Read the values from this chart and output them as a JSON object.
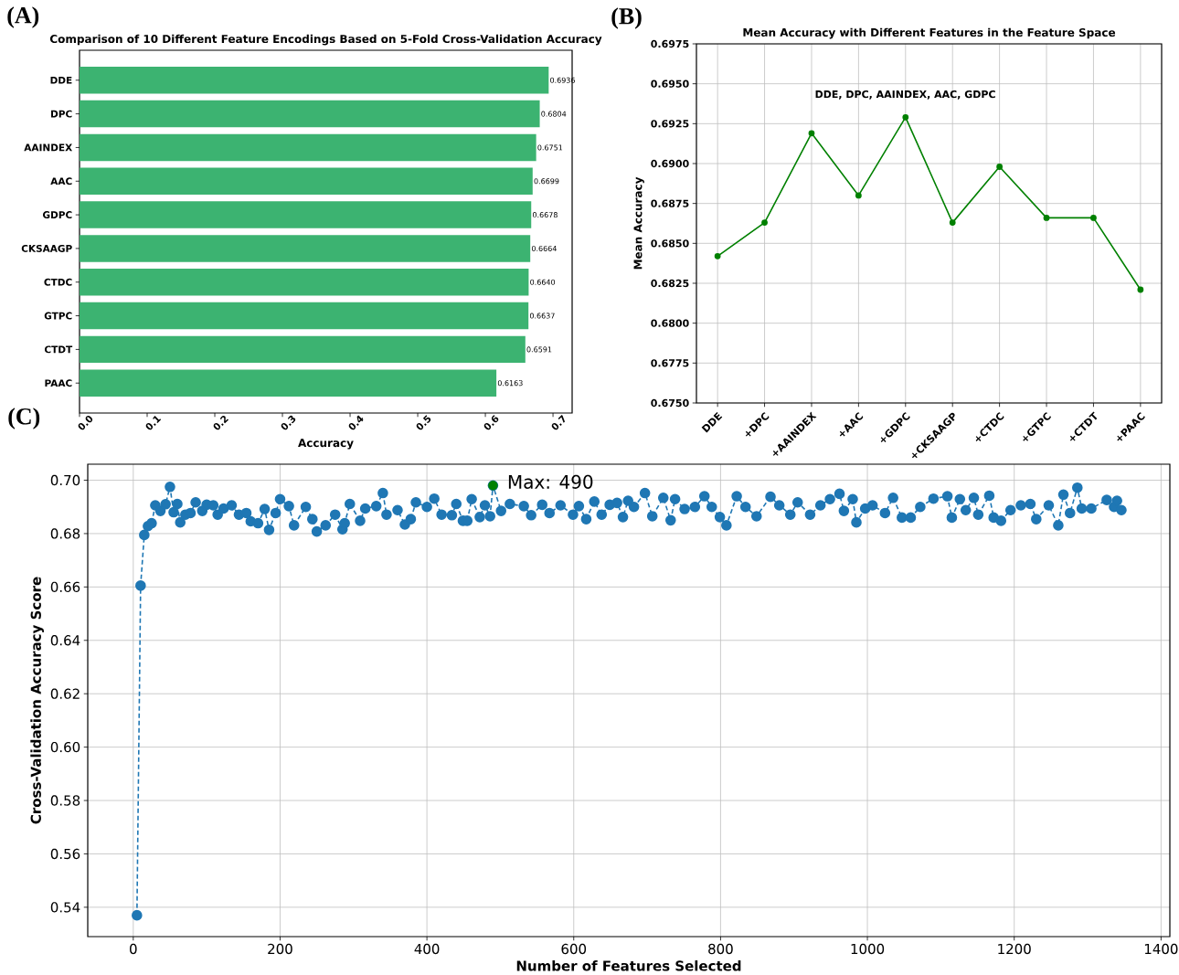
{
  "chart_data": [
    {
      "type": "bar",
      "orientation": "horizontal",
      "title": "Comparison of 10 Different Feature Encodings Based on 5-Fold Cross-Validation Accuracy",
      "xlabel": "Accuracy",
      "categories": [
        "DDE",
        "DPC",
        "AAINDEX",
        "AAC",
        "GDPC",
        "CKSAAGP",
        "CTDC",
        "GTPC",
        "CTDT",
        "PAAC"
      ],
      "values": [
        0.6936,
        0.6804,
        0.6751,
        0.6699,
        0.6678,
        0.6664,
        0.664,
        0.6637,
        0.6591,
        0.6163
      ],
      "value_labels": [
        "0.6936",
        "0.6804",
        "0.6751",
        "0.6699",
        "0.6678",
        "0.6664",
        "0.6640",
        "0.6637",
        "0.6591",
        "0.6163"
      ],
      "color": "#3cb371",
      "xlim": [
        0,
        0.7283
      ],
      "xticks": [
        {
          "value": 0,
          "label": "0.0"
        },
        {
          "value": 0.1,
          "label": "0.1"
        },
        {
          "value": 0.2,
          "label": "0.2"
        },
        {
          "value": 0.3,
          "label": "0.3"
        },
        {
          "value": 0.4,
          "label": "0.4"
        },
        {
          "value": 0.5,
          "label": "0.5"
        },
        {
          "value": 0.6,
          "label": "0.6"
        },
        {
          "value": 0.7,
          "label": "0.7"
        }
      ],
      "annotations": [
        "(A)"
      ]
    },
    {
      "type": "line",
      "title": "Mean Accuracy with Different Features in the Feature Space",
      "ylabel": "Mean Accuracy",
      "categories": [
        "DDE",
        "+DPC",
        "+AAINDEX",
        "+AAC",
        "+GDPC",
        "+CKSAAGP",
        "+CTDC",
        "+GTPC",
        "+CTDT",
        "+PAAC"
      ],
      "values": [
        0.6842,
        0.6863,
        0.6919,
        0.688,
        0.6929,
        0.6863,
        0.6898,
        0.6866,
        0.6866,
        0.6821
      ],
      "color": "#008000",
      "marker": "circle",
      "grid": true,
      "ylim": [
        0.675,
        0.6975
      ],
      "yticks": [
        {
          "value": 0.675,
          "label": "0.6750"
        },
        {
          "value": 0.6775,
          "label": "0.6775"
        },
        {
          "value": 0.68,
          "label": "0.6800"
        },
        {
          "value": 0.6825,
          "label": "0.6825"
        },
        {
          "value": 0.685,
          "label": "0.6850"
        },
        {
          "value": 0.6875,
          "label": "0.6875"
        },
        {
          "value": 0.69,
          "label": "0.6900"
        },
        {
          "value": 0.6925,
          "label": "0.6925"
        },
        {
          "value": 0.695,
          "label": "0.6950"
        },
        {
          "value": 0.6975,
          "label": "0.6975"
        }
      ],
      "annotations": [
        "(B)",
        "DDE, DPC, AAINDEX, AAC, GDPC"
      ]
    },
    {
      "type": "line",
      "xlabel": "Number of Features Selected",
      "ylabel": "Cross-Validation Accuracy Score",
      "grid": true,
      "xlim": [
        -62,
        1412
      ],
      "ylim": [
        0.529,
        0.706
      ],
      "xticks": [
        0,
        200,
        400,
        600,
        800,
        1000,
        1200,
        1400
      ],
      "yticks": [
        {
          "value": 0.54,
          "label": "0.54"
        },
        {
          "value": 0.56,
          "label": "0.56"
        },
        {
          "value": 0.58,
          "label": "0.58"
        },
        {
          "value": 0.6,
          "label": "0.60"
        },
        {
          "value": 0.62,
          "label": "0.62"
        },
        {
          "value": 0.64,
          "label": "0.64"
        },
        {
          "value": 0.66,
          "label": "0.66"
        },
        {
          "value": 0.68,
          "label": "0.68"
        },
        {
          "value": 0.7,
          "label": "0.70"
        }
      ],
      "series": [
        {
          "type": "line",
          "color": "#1f77b4",
          "line_style": "dashed",
          "marker": "circle",
          "x": [
            5,
            10,
            15,
            20,
            25,
            30,
            37,
            44,
            50,
            55,
            60,
            64,
            71,
            78,
            85,
            94,
            100,
            109,
            115,
            123,
            134,
            144,
            154,
            160,
            170,
            179,
            185,
            194,
            200,
            212,
            219,
            235,
            244,
            250,
            262,
            275,
            285,
            288,
            295,
            309,
            316,
            331,
            340,
            345,
            360,
            370,
            378,
            385,
            400,
            410,
            420,
            434,
            440,
            449,
            455,
            461,
            472,
            479,
            486,
            490,
            501,
            513,
            532,
            542,
            557,
            567,
            582,
            599,
            607,
            617,
            628,
            638,
            649,
            659,
            667,
            674,
            682,
            697,
            707,
            722,
            732,
            738,
            751,
            765,
            778,
            788,
            799,
            808,
            822,
            834,
            849,
            868,
            880,
            895,
            905,
            922,
            936,
            949,
            962,
            968,
            980,
            985,
            997,
            1007,
            1024,
            1035,
            1047,
            1059,
            1072,
            1090,
            1109,
            1115,
            1126,
            1134,
            1145,
            1151,
            1166,
            1172,
            1182,
            1195,
            1209,
            1222,
            1230,
            1247,
            1260,
            1267,
            1276,
            1286,
            1292,
            1305,
            1326,
            1336,
            1340,
            1346
          ],
          "values": [
            0.537,
            0.6605,
            0.6795,
            0.6828,
            0.6839,
            0.6906,
            0.6885,
            0.691,
            0.6975,
            0.688,
            0.6911,
            0.6842,
            0.6871,
            0.6877,
            0.6917,
            0.6885,
            0.6908,
            0.6906,
            0.6871,
            0.6894,
            0.6906,
            0.6871,
            0.6877,
            0.6846,
            0.6839,
            0.6892,
            0.6814,
            0.6877,
            0.6929,
            0.6903,
            0.6831,
            0.69,
            0.6854,
            0.6808,
            0.6831,
            0.6871,
            0.6816,
            0.6839,
            0.6911,
            0.6848,
            0.6894,
            0.6903,
            0.6952,
            0.6871,
            0.6888,
            0.6834,
            0.6854,
            0.6917,
            0.69,
            0.6931,
            0.6871,
            0.6869,
            0.6911,
            0.6848,
            0.6848,
            0.6929,
            0.6862,
            0.6906,
            0.6865,
            0.698,
            0.6885,
            0.6911,
            0.6903,
            0.6869,
            0.6908,
            0.6877,
            0.6906,
            0.6871,
            0.6903,
            0.6854,
            0.692,
            0.6871,
            0.6908,
            0.6915,
            0.6862,
            0.6923,
            0.69,
            0.6952,
            0.6865,
            0.6934,
            0.685,
            0.6929,
            0.6892,
            0.69,
            0.694,
            0.69,
            0.6862,
            0.6831,
            0.694,
            0.69,
            0.6865,
            0.6938,
            0.6906,
            0.6871,
            0.6917,
            0.6871,
            0.6906,
            0.6929,
            0.6949,
            0.6885,
            0.6929,
            0.6842,
            0.6894,
            0.6906,
            0.6877,
            0.6934,
            0.686,
            0.686,
            0.69,
            0.6931,
            0.694,
            0.686,
            0.6929,
            0.6888,
            0.6934,
            0.6871,
            0.6942,
            0.686,
            0.6848,
            0.6888,
            0.6906,
            0.6911,
            0.6854,
            0.6906,
            0.6831,
            0.6946,
            0.6877,
            0.6972,
            0.6894,
            0.6894,
            0.6926,
            0.69,
            0.6923,
            0.6888
          ]
        },
        {
          "type": "scatter",
          "color": "#008000",
          "marker": "circle",
          "x": [
            490
          ],
          "values": [
            0.698
          ]
        }
      ],
      "annotations": [
        "(C)",
        {
          "text": "Max: 490",
          "x": 490,
          "y": 0.698
        }
      ]
    }
  ]
}
